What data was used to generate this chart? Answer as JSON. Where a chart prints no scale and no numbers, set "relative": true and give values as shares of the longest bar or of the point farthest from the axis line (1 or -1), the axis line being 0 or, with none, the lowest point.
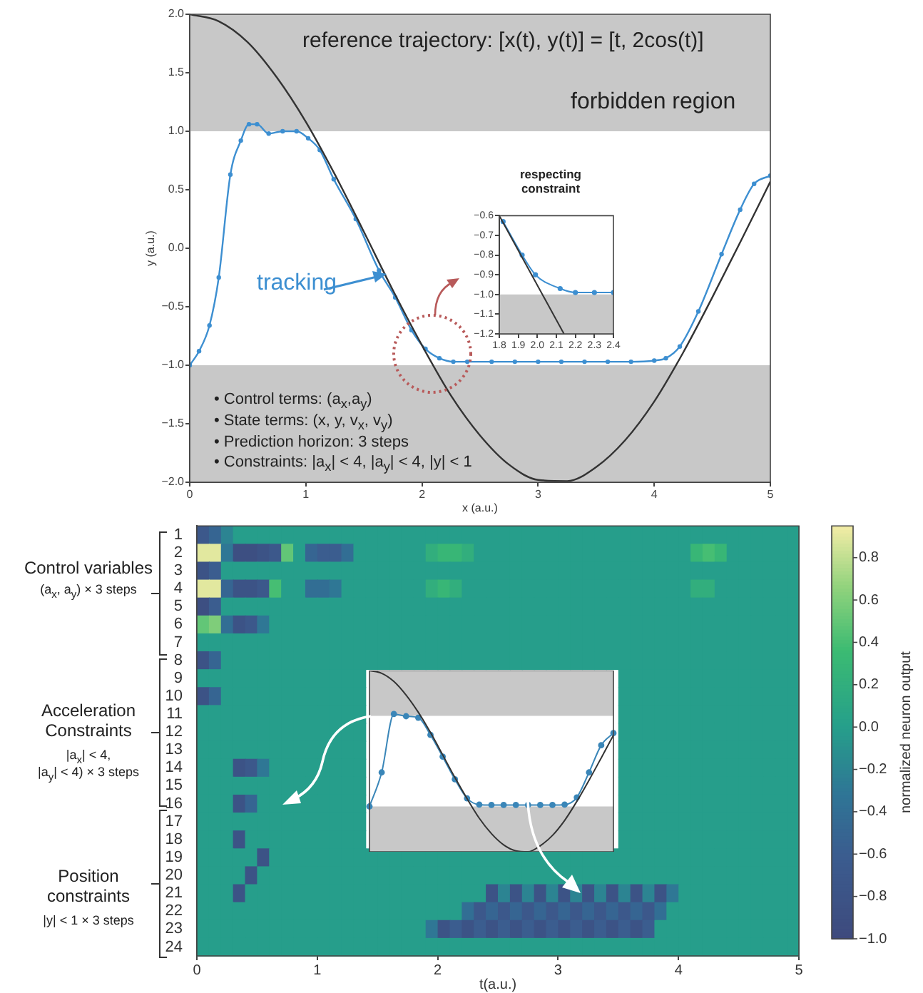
{
  "chart_data": [
    {
      "type": "line",
      "xlabel": "x (a.u.)",
      "ylabel": "y (a.u.)",
      "xlim": [
        0,
        5
      ],
      "ylim": [
        -2,
        2
      ],
      "xticks": [
        0,
        1,
        2,
        3,
        4,
        5
      ],
      "yticks": [
        {
          "value": 2,
          "label": "2.0"
        },
        1.5,
        {
          "value": 1,
          "label": "1.0"
        },
        0.5,
        {
          "value": 0,
          "label": "0.0"
        },
        {
          "value": -0.5,
          "label": "−0.5"
        },
        {
          "value": -1,
          "label": "−1.0"
        },
        {
          "value": -1.5,
          "label": "−1.5"
        },
        {
          "value": -2,
          "label": "−2.0"
        }
      ],
      "series": [
        {
          "color": "#333333",
          "marker": "none",
          "x": [
            0,
            0.25,
            0.5,
            0.75,
            1,
            1.25,
            1.5,
            1.75,
            2,
            2.25,
            2.5,
            2.75,
            3,
            3.25,
            3.5,
            3.75,
            4,
            4.25,
            4.5,
            4.75,
            5
          ],
          "values": [
            2,
            1.94,
            1.76,
            1.46,
            1.08,
            0.63,
            0.14,
            -0.36,
            -0.83,
            -1.26,
            -1.6,
            -1.85,
            -1.98,
            -1.99,
            -1.87,
            -1.64,
            -1.31,
            -0.89,
            -0.42,
            0.07,
            0.57
          ]
        },
        {
          "name": "tracking",
          "color": "#3d8fd1",
          "marker": "circle",
          "x": [
            0,
            0.08,
            0.17,
            0.25,
            0.35,
            0.44,
            0.51,
            0.58,
            0.68,
            0.8,
            0.92,
            1.02,
            1.12,
            1.24,
            1.43,
            1.63,
            1.77,
            1.91,
            2.03,
            2.15,
            2.27,
            2.39,
            2.6,
            2.8,
            3.0,
            3.2,
            3.4,
            3.6,
            3.8,
            4.0,
            4.1,
            4.22,
            4.38,
            4.58,
            4.74,
            4.86,
            5.0
          ],
          "values": [
            -1,
            -0.88,
            -0.66,
            -0.25,
            0.63,
            0.92,
            1.06,
            1.06,
            0.98,
            1.0,
            1.0,
            0.94,
            0.84,
            0.59,
            0.25,
            -0.19,
            -0.42,
            -0.7,
            -0.86,
            -0.94,
            -0.97,
            -0.97,
            -0.97,
            -0.97,
            -0.97,
            -0.97,
            -0.97,
            -0.97,
            -0.97,
            -0.96,
            -0.94,
            -0.84,
            -0.54,
            -0.05,
            0.33,
            0.55,
            0.62
          ]
        }
      ],
      "bands": [
        {
          "axis": "y",
          "from": 1,
          "to": 2,
          "label": "forbidden region",
          "color": "#c8c8c8"
        },
        {
          "axis": "y",
          "from": -2,
          "to": -1,
          "color": "#c8c8c8"
        }
      ],
      "annotations": [
        "reference trajectory: [x(t), y(t)] = [t, 2cos(t)]",
        "• Control terms: (a$_{x}$,a$_{y}$)",
        "• State terms: (x, y, v$_{x}$, v$_{y}$)",
        "• Prediction horizon: 3 steps",
        "• Constraints: |a$_{x}$| < 4, |a$_{y}$| < 4, |y| < 1"
      ]
    },
    {
      "type": "line",
      "title": "respecting constraint",
      "xlim": [
        1.8,
        2.4
      ],
      "ylim": [
        -1.2,
        -0.6
      ],
      "xticks": [
        1.8,
        1.9,
        {
          "value": 2,
          "label": "2.0"
        },
        2.1,
        2.2,
        2.3,
        2.4
      ],
      "yticks": [
        {
          "value": -0.6,
          "label": "−0.6"
        },
        {
          "value": -0.7,
          "label": "−0.7"
        },
        {
          "value": -0.8,
          "label": "−0.8"
        },
        {
          "value": -0.9,
          "label": "−0.9"
        },
        {
          "value": -1,
          "label": "−1.0"
        },
        {
          "value": -1.1,
          "label": "−1.1"
        },
        {
          "value": -1.2,
          "label": "−1.2"
        }
      ],
      "series": [
        {
          "color": "#333333",
          "marker": "none",
          "x": [
            1.8,
            2.14
          ],
          "values": [
            -0.6,
            -1.2
          ]
        },
        {
          "color": "#3d8fd1",
          "marker": "circle",
          "x": [
            1.82,
            1.92,
            1.99,
            2.12,
            2.2,
            2.3,
            2.4
          ],
          "values": [
            -0.63,
            -0.8,
            -0.9,
            -0.97,
            -0.99,
            -0.99,
            -0.99
          ]
        }
      ],
      "bands": [
        {
          "axis": "y",
          "from": -1.2,
          "to": -1,
          "color": "#c8c8c8"
        }
      ]
    },
    {
      "type": "heatmap",
      "xlabel": "t(a.u.)",
      "clabel": "normalized neuron output",
      "xlim": [
        0,
        5
      ],
      "xticks": [
        0,
        1,
        2,
        3,
        4,
        5
      ],
      "x": [
        0.05,
        0.15,
        0.25,
        0.35,
        0.45,
        0.55,
        0.65,
        0.75,
        0.85,
        0.95,
        1.05,
        1.15,
        1.25,
        1.35,
        1.45,
        1.55,
        1.65,
        1.75,
        1.85,
        1.95,
        2.05,
        2.15,
        2.25,
        2.35,
        2.45,
        2.55,
        2.65,
        2.75,
        2.85,
        2.95,
        3.05,
        3.15,
        3.25,
        3.35,
        3.45,
        3.55,
        3.65,
        3.75,
        3.85,
        3.95,
        4.05,
        4.15,
        4.25,
        4.35,
        4.45,
        4.55,
        4.65,
        4.75,
        4.85,
        4.95
      ],
      "y_categories": [
        "1",
        "2",
        "3",
        "4",
        "5",
        "6",
        "7",
        "8",
        "9",
        "10",
        "11",
        "12",
        "13",
        "14",
        "15",
        "16",
        "17",
        "18",
        "19",
        "20",
        "21",
        "22",
        "23",
        "24"
      ],
      "clim": [
        -1,
        0.95
      ],
      "cticks": [
        0.8,
        0.6,
        0.4,
        0.2,
        {
          "value": 0,
          "label": "0.0"
        },
        {
          "value": -0.2,
          "label": "−0.2"
        },
        {
          "value": -0.4,
          "label": "−0.4"
        },
        {
          "value": -0.6,
          "label": "−0.6"
        },
        {
          "value": -0.8,
          "label": "−0.8"
        },
        {
          "value": -1,
          "label": "−1.0"
        }
      ],
      "annotations": [
        "Control variables",
        "(a$_{x}$, a$_{y}$) × 3 steps",
        "Acceleration Constraints",
        "|a$_{x}$| < 4,",
        "|a$_{y}$| < 4) × 3 steps",
        "Position constraints",
        "|y| < 1 × 3 steps"
      ],
      "cells": [
        [
          -0.7,
          -0.5,
          -0.2,
          0,
          0,
          0,
          0,
          0,
          0,
          0,
          0,
          0,
          0,
          0,
          0,
          0,
          0,
          0,
          0,
          0,
          0,
          0,
          0,
          0,
          0,
          0,
          0,
          0,
          0,
          0,
          0,
          0,
          0,
          0,
          0,
          0,
          0,
          0,
          0,
          0,
          0,
          0,
          0,
          0,
          0,
          0,
          0,
          0,
          0,
          0
        ],
        [
          0.9,
          0.9,
          -0.3,
          -0.9,
          -0.9,
          -0.8,
          -0.7,
          0.5,
          0,
          -0.5,
          -0.6,
          -0.6,
          -0.4,
          0,
          0,
          0,
          0,
          0,
          0,
          0.2,
          0.3,
          0.3,
          0.2,
          0,
          0,
          0,
          0,
          0,
          0,
          0,
          0,
          0,
          0,
          0,
          0,
          0,
          0,
          0,
          0,
          0,
          0,
          0.3,
          0.4,
          0.3,
          0,
          0,
          0,
          0,
          0,
          0
        ],
        [
          -0.8,
          -0.6,
          0,
          0,
          0,
          0,
          0,
          0,
          0,
          0,
          0,
          0,
          0,
          0,
          0,
          0,
          0,
          0,
          0,
          0,
          0,
          0,
          0,
          0,
          0,
          0,
          0,
          0,
          0,
          0,
          0,
          0,
          0,
          0,
          0,
          0,
          0,
          0,
          0,
          0,
          0,
          0,
          0,
          0,
          0,
          0,
          0,
          0,
          0,
          0
        ],
        [
          0.9,
          0.9,
          -0.5,
          -0.8,
          -0.8,
          -0.7,
          0.4,
          0,
          0,
          -0.4,
          -0.4,
          -0.3,
          0,
          0,
          0,
          0,
          0,
          0,
          0,
          0.2,
          0.3,
          0.2,
          0,
          0,
          0,
          0,
          0,
          0,
          0,
          0,
          0,
          0,
          0,
          0,
          0,
          0,
          0,
          0,
          0,
          0,
          0,
          0.2,
          0.2,
          0,
          0,
          0,
          0,
          0,
          0,
          0
        ],
        [
          -0.9,
          -0.6,
          0,
          0,
          0,
          0,
          0,
          0,
          0,
          0,
          0,
          0,
          0,
          0,
          0,
          0,
          0,
          0,
          0,
          0,
          0,
          0,
          0,
          0,
          0,
          0,
          0,
          0,
          0,
          0,
          0,
          0,
          0,
          0,
          0,
          0,
          0,
          0,
          0,
          0,
          0,
          0,
          0,
          0,
          0,
          0,
          0,
          0,
          0,
          0
        ],
        [
          0.5,
          0.6,
          -0.4,
          -0.8,
          -0.7,
          -0.3,
          0,
          0,
          0,
          0,
          0,
          0,
          0,
          0,
          0,
          0,
          0,
          0,
          0,
          0,
          0,
          0,
          0,
          0,
          0,
          0,
          0,
          0,
          0,
          0,
          0,
          0,
          0,
          0,
          0,
          0,
          0,
          0,
          0,
          0,
          0,
          0,
          0,
          0,
          0,
          0,
          0,
          0,
          0,
          0
        ],
        [
          0,
          0,
          0,
          0,
          0,
          0,
          0,
          0,
          0,
          0,
          0,
          0,
          0,
          0,
          0,
          0,
          0,
          0,
          0,
          0,
          0,
          0,
          0,
          0,
          0,
          0,
          0,
          0,
          0,
          0,
          0,
          0,
          0,
          0,
          0,
          0,
          0,
          0,
          0,
          0,
          0,
          0,
          0,
          0,
          0,
          0,
          0,
          0,
          0,
          0
        ],
        [
          -0.8,
          -0.5,
          0,
          0,
          0,
          0,
          0,
          0,
          0,
          0,
          0,
          0,
          0,
          0,
          0,
          0,
          0,
          0,
          0,
          0,
          0,
          0,
          0,
          0,
          0,
          0,
          0,
          0,
          0,
          0,
          0,
          0,
          0,
          0,
          0,
          0,
          0,
          0,
          0,
          0,
          0,
          0,
          0,
          0,
          0,
          0,
          0,
          0,
          0,
          0
        ],
        [
          0,
          0,
          0,
          0,
          0,
          0,
          0,
          0,
          0,
          0,
          0,
          0,
          0,
          0,
          null,
          null,
          null,
          null,
          null,
          null,
          null,
          null,
          null,
          null,
          null,
          null,
          null,
          null,
          null,
          null,
          null,
          null,
          null,
          null,
          null,
          0,
          0,
          0,
          0,
          0,
          0,
          0,
          0,
          0,
          0,
          0,
          0,
          0,
          0,
          0
        ],
        [
          -0.8,
          -0.5,
          0,
          0,
          0,
          0,
          0,
          0,
          0,
          0,
          0,
          0,
          0,
          0,
          null,
          null,
          null,
          null,
          null,
          null,
          null,
          null,
          null,
          null,
          null,
          null,
          null,
          null,
          null,
          null,
          null,
          null,
          null,
          null,
          null,
          0,
          0,
          0,
          0,
          0,
          0,
          0,
          0,
          0,
          0,
          0,
          0,
          0,
          0,
          0
        ],
        [
          0,
          0,
          0,
          0,
          0,
          0,
          0,
          0,
          0,
          0,
          0,
          0,
          0,
          0,
          null,
          null,
          null,
          null,
          null,
          null,
          null,
          null,
          null,
          null,
          null,
          null,
          null,
          null,
          null,
          null,
          null,
          null,
          null,
          null,
          null,
          0,
          0,
          0,
          0,
          0,
          0,
          0,
          0,
          0,
          0,
          0,
          0,
          0,
          0,
          0
        ],
        [
          0,
          0,
          0,
          0,
          0,
          0,
          0,
          0,
          0,
          0,
          0,
          0,
          0,
          0,
          null,
          null,
          null,
          null,
          null,
          null,
          null,
          null,
          null,
          null,
          null,
          null,
          null,
          null,
          null,
          null,
          null,
          null,
          null,
          null,
          null,
          0,
          0,
          0,
          0,
          0,
          0,
          0,
          0,
          0,
          0,
          0,
          0,
          0,
          0,
          0
        ],
        [
          0,
          0,
          0,
          0,
          0,
          0,
          0,
          0,
          0,
          0,
          0,
          0,
          0,
          0,
          null,
          null,
          null,
          null,
          null,
          null,
          null,
          null,
          null,
          null,
          null,
          null,
          null,
          null,
          null,
          null,
          null,
          null,
          null,
          null,
          null,
          0,
          0,
          0,
          0,
          0,
          0,
          0,
          0,
          0,
          0,
          0,
          0,
          0,
          0,
          0
        ],
        [
          0,
          0,
          0,
          -0.8,
          -0.7,
          -0.3,
          0,
          0,
          0,
          0,
          0,
          0,
          0,
          0,
          null,
          null,
          null,
          null,
          null,
          null,
          null,
          null,
          null,
          null,
          null,
          null,
          null,
          null,
          null,
          null,
          null,
          null,
          null,
          null,
          null,
          0,
          0,
          0,
          0,
          0,
          0,
          0,
          0,
          0,
          0,
          0,
          0,
          0,
          0,
          0
        ],
        [
          0,
          0,
          0,
          0,
          0,
          0,
          0,
          0,
          0,
          0,
          0,
          0,
          0,
          0,
          null,
          null,
          null,
          null,
          null,
          null,
          null,
          null,
          null,
          null,
          null,
          null,
          null,
          null,
          null,
          null,
          null,
          null,
          null,
          null,
          null,
          0,
          0,
          0,
          0,
          0,
          0,
          0,
          0,
          0,
          0,
          0,
          0,
          0,
          0,
          0
        ],
        [
          0,
          0,
          0,
          -0.8,
          -0.5,
          0,
          0,
          0,
          0,
          0,
          0,
          0,
          0,
          0,
          null,
          null,
          null,
          null,
          null,
          null,
          null,
          null,
          null,
          null,
          null,
          null,
          null,
          null,
          null,
          null,
          null,
          null,
          null,
          null,
          null,
          0,
          0,
          0,
          0,
          0,
          0,
          0,
          0,
          0,
          0,
          0,
          0,
          0,
          0,
          0
        ],
        [
          0,
          0,
          0,
          0,
          0,
          0,
          0,
          0,
          0,
          0,
          0,
          0,
          0,
          0,
          null,
          null,
          null,
          null,
          null,
          null,
          null,
          null,
          null,
          null,
          null,
          null,
          null,
          null,
          null,
          null,
          null,
          null,
          null,
          null,
          null,
          0,
          0,
          0,
          0,
          0,
          0,
          0,
          0,
          0,
          0,
          0,
          0,
          0,
          0,
          0
        ],
        [
          0,
          0,
          0,
          -0.8,
          0,
          0,
          0,
          0,
          0,
          0,
          0,
          0,
          0,
          0,
          null,
          null,
          null,
          null,
          null,
          null,
          null,
          null,
          null,
          null,
          null,
          null,
          null,
          null,
          null,
          null,
          null,
          null,
          null,
          null,
          null,
          0,
          0,
          0,
          0,
          0,
          0,
          0,
          0,
          0,
          0,
          0,
          0,
          0,
          0,
          0
        ],
        [
          0,
          0,
          0,
          0,
          0,
          -0.8,
          0,
          0,
          0,
          0,
          0,
          0,
          0,
          0,
          0,
          0,
          0,
          0,
          0,
          0,
          0,
          0,
          0,
          0,
          0,
          0,
          0,
          0,
          0,
          0,
          0,
          0,
          0,
          0,
          0,
          0,
          0,
          0,
          0,
          0,
          0,
          0,
          0,
          0,
          0,
          0,
          0,
          0,
          0,
          0
        ],
        [
          0,
          0,
          0,
          0,
          -0.8,
          0,
          0,
          0,
          0,
          0,
          0,
          0,
          0,
          0,
          0,
          0,
          0,
          0,
          0,
          0,
          0,
          0,
          0,
          0,
          0,
          0,
          0,
          0,
          0,
          0,
          0,
          0,
          0,
          0,
          0,
          0,
          0,
          0,
          0,
          0,
          0,
          0,
          0,
          0,
          0,
          0,
          0,
          0,
          0,
          0
        ],
        [
          0,
          0,
          0,
          -0.8,
          0,
          0,
          0,
          0,
          0,
          0,
          0,
          0,
          0,
          0,
          0,
          0,
          0,
          0,
          0,
          0,
          0,
          0,
          0,
          0,
          -0.8,
          -0.2,
          -0.8,
          -0.2,
          -0.8,
          -0.2,
          -0.8,
          -0.2,
          -0.8,
          -0.2,
          -0.8,
          -0.2,
          -0.8,
          -0.2,
          -0.8,
          -0.3,
          0,
          0,
          0,
          0,
          0,
          0,
          0,
          0,
          0,
          0
        ],
        [
          0,
          0,
          0,
          0,
          0,
          0,
          0,
          0,
          0,
          0,
          0,
          0,
          0,
          0,
          0,
          0,
          0,
          0,
          0,
          0,
          0,
          0,
          -0.4,
          -0.7,
          -0.5,
          -0.7,
          -0.5,
          -0.7,
          -0.5,
          -0.7,
          -0.5,
          -0.7,
          -0.5,
          -0.7,
          -0.5,
          -0.7,
          -0.5,
          -0.7,
          -0.4,
          0,
          0,
          0,
          0,
          0,
          0,
          0,
          0,
          0,
          0,
          0
        ],
        [
          0,
          0,
          0,
          0,
          0,
          0,
          0,
          0,
          0,
          0,
          0,
          0,
          0,
          0,
          0,
          0,
          0,
          0,
          0,
          -0.3,
          -0.8,
          -0.6,
          -0.8,
          -0.6,
          -0.8,
          -0.6,
          -0.8,
          -0.6,
          -0.8,
          -0.6,
          -0.8,
          -0.6,
          -0.8,
          -0.6,
          -0.8,
          -0.6,
          -0.8,
          -0.6,
          0,
          0,
          0,
          0,
          0,
          0,
          0,
          0,
          0,
          0,
          0,
          0
        ],
        [
          0,
          0,
          0,
          0,
          0,
          0,
          0,
          0,
          0,
          0,
          0,
          0,
          0,
          0,
          0,
          0,
          0,
          0,
          0,
          0,
          0,
          0,
          0,
          0,
          0,
          0,
          0,
          0,
          0,
          0,
          0,
          0,
          0,
          0,
          0,
          0,
          0,
          0,
          0,
          0,
          0,
          0,
          0,
          0,
          0,
          0,
          0,
          0,
          0,
          0
        ]
      ]
    },
    {
      "type": "line",
      "relative": true,
      "categories": [
        null,
        null,
        null,
        null,
        null,
        null,
        null,
        null,
        null,
        null,
        null,
        null,
        null,
        null,
        null,
        null,
        null,
        null,
        null,
        null,
        null
      ],
      "series": [
        {
          "color": "#333333",
          "marker": "none",
          "values": [
            1,
            0.985,
            0.94,
            0.865,
            0.77,
            0.658,
            0.535,
            0.41,
            0.293,
            0.185,
            0.1,
            0.038,
            0.005,
            0,
            0.033,
            0.09,
            0.173,
            0.278,
            0.395,
            0.518,
            0.643
          ]
        },
        {
          "color": "#3a86b8",
          "marker": "circle",
          "values": [
            0.25,
            0.438,
            0.76,
            0.748,
            0.74,
            0.645,
            0.525,
            0.4,
            0.295,
            0.26,
            0.258,
            0.258,
            0.258,
            0.258,
            0.258,
            0.258,
            0.26,
            0.3,
            0.438,
            0.588,
            0.655
          ]
        }
      ],
      "bands": [
        {
          "axis": "y",
          "from": 0.75,
          "to": 1,
          "color": "#c8c8c8"
        },
        {
          "axis": "y",
          "from": 0,
          "to": 0.25,
          "color": "#c8c8c8"
        }
      ]
    }
  ]
}
